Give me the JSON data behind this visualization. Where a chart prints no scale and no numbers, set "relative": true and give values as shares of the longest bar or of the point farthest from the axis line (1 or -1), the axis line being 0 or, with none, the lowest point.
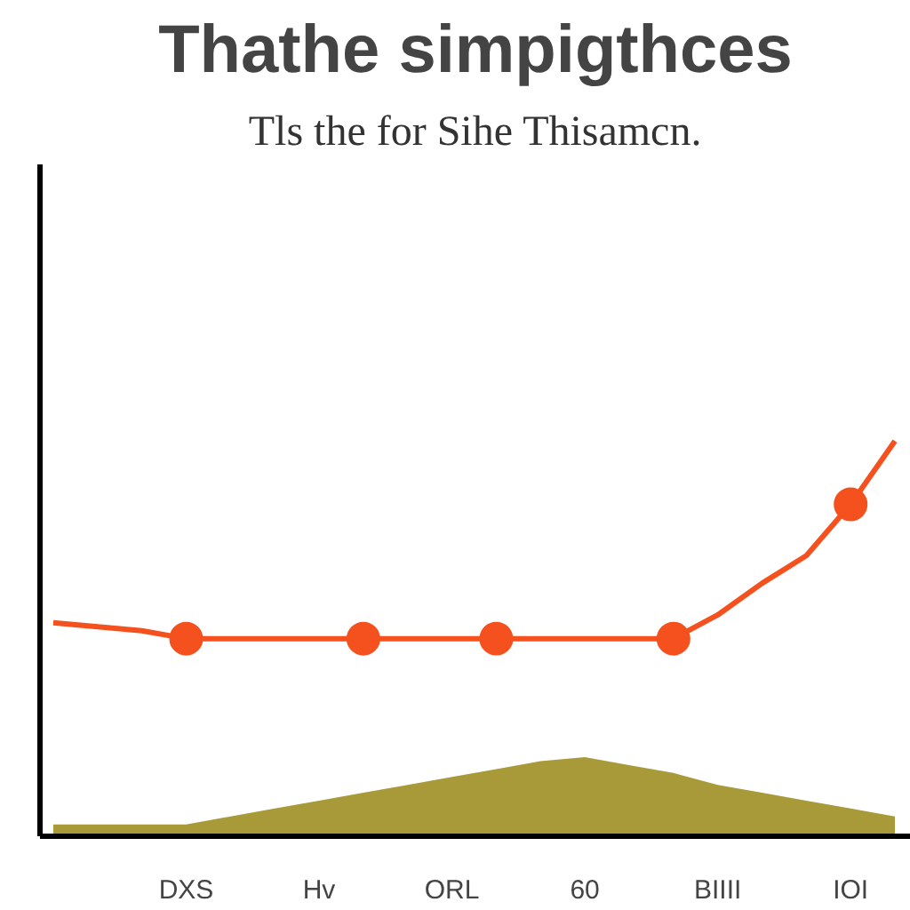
{
  "chart_data": {
    "type": "line",
    "title": "Thathe simpigthces",
    "subtitle": "Tls the for Sihe Thisamcn.",
    "relative": true,
    "categories": [
      null,
      null,
      null,
      "DXS",
      null,
      null,
      "Hv",
      null,
      null,
      "ORL",
      null,
      null,
      "60",
      null,
      null,
      "BIIII",
      null,
      null,
      "IOI",
      null
    ],
    "series": [
      {
        "type": "area",
        "color": "#a89a38",
        "values": [
          0.03,
          0.03,
          0.03,
          0.03,
          0.05,
          0.07,
          0.09,
          0.11,
          0.13,
          0.15,
          0.17,
          0.19,
          0.2,
          0.18,
          0.16,
          0.13,
          0.11,
          0.09,
          0.07,
          0.05
        ]
      },
      {
        "color": "#f4511e",
        "values": [
          0.54,
          0.53,
          0.52,
          0.5,
          0.5,
          0.5,
          0.5,
          0.5,
          0.5,
          0.5,
          0.5,
          0.5,
          0.5,
          0.5,
          0.5,
          0.56,
          0.64,
          0.71,
          0.84,
          1
        ]
      },
      {
        "type": "scatter",
        "color": "#f4511e",
        "marker": "circle",
        "values": [
          null,
          null,
          null,
          0.5,
          null,
          null,
          null,
          0.5,
          null,
          null,
          0.5,
          null,
          null,
          null,
          0.5,
          null,
          null,
          null,
          0.84,
          null
        ]
      }
    ]
  }
}
